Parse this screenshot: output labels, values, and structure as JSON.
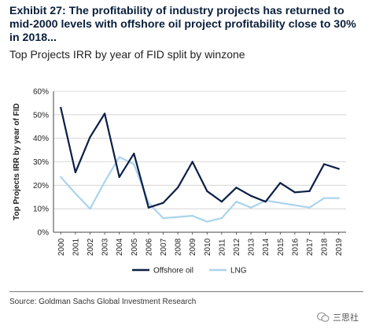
{
  "title": "Exhibit 27: The profitability of industry projects has returned to mid-2000 levels with offshore oil project profitability close to 30% in 2018...",
  "subtitle": "Top Projects IRR by year of FID split by winzone",
  "source": "Source: Goldman Sachs Global Investment Research",
  "watermark": "三思社",
  "chart_data": {
    "type": "line",
    "ylabel": "Top Projects IRR by year of FID",
    "xlabel": "",
    "ylim": [
      0,
      60
    ],
    "yticks": [
      "0%",
      "10%",
      "20%",
      "30%",
      "40%",
      "50%",
      "60%"
    ],
    "yticks_values": [
      0,
      10,
      20,
      30,
      40,
      50,
      60
    ],
    "categories": [
      "2000",
      "2001",
      "2002",
      "2003",
      "2004",
      "2005",
      "2006",
      "2007",
      "2008",
      "2009",
      "2010",
      "2011",
      "2012",
      "2013",
      "2014",
      "2015",
      "2016",
      "2017",
      "2018",
      "2019"
    ],
    "grid": true,
    "legend_position": "bottom",
    "series": [
      {
        "name": "Offshore oil",
        "color": "#0b1f45",
        "values": [
          53,
          25.5,
          40.5,
          50.5,
          23.5,
          33.5,
          10.5,
          12.5,
          19,
          30,
          17.5,
          13,
          19,
          15.5,
          13,
          21,
          17,
          17.5,
          29,
          27
        ]
      },
      {
        "name": "LNG",
        "color": "#a9d4ec",
        "values": [
          23.5,
          16.5,
          10,
          21.5,
          32,
          29,
          12.5,
          6,
          6.5,
          7,
          4.5,
          6,
          13,
          10.5,
          13.5,
          12.5,
          11.5,
          10.5,
          14.5,
          14.5
        ]
      }
    ]
  }
}
